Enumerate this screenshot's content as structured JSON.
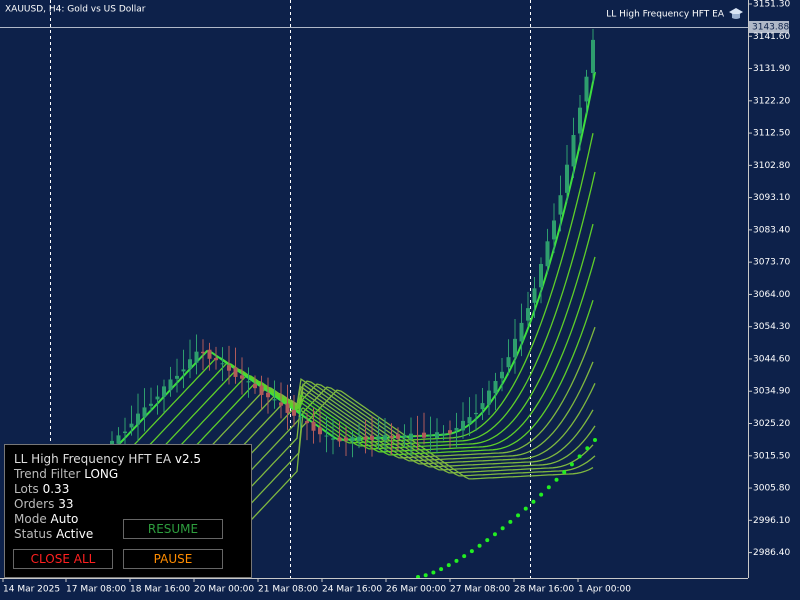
{
  "header": {
    "symbol": "XAUUSD, H4:  Gold vs US Dollar",
    "ea_name": "LL High Frequency HFT EA"
  },
  "current_price": "3143.88",
  "price_axis": [
    "3151.30",
    "3141.60",
    "3131.90",
    "3122.20",
    "3112.50",
    "3102.80",
    "3093.10",
    "3083.40",
    "3073.70",
    "3064.00",
    "3054.30",
    "3044.60",
    "3034.90",
    "3025.20",
    "3015.50",
    "3005.80",
    "2996.10",
    "2986.40"
  ],
  "time_axis": [
    "14 Mar 2025",
    "17 Mar 08:00",
    "18 Mar 16:00",
    "20 Mar 00:00",
    "21 Mar 08:00",
    "24 Mar 16:00",
    "26 Mar 00:00",
    "27 Mar 08:00",
    "28 Mar 16:00",
    "1 Apr 00:00"
  ],
  "panel": {
    "title": "LL High Frequency HFT EA",
    "version": "v2.5",
    "fields": [
      {
        "label": "Trend Filter",
        "value": "LONG"
      },
      {
        "label": "Lots",
        "value": "0.33"
      },
      {
        "label": "Orders",
        "value": "33"
      },
      {
        "label": "Mode",
        "value": "Auto"
      },
      {
        "label": "Status",
        "value": "Active"
      }
    ],
    "buttons": {
      "resume": "RESUME",
      "close_all": "CLOSE ALL",
      "pause": "PAUSE"
    }
  }
}
